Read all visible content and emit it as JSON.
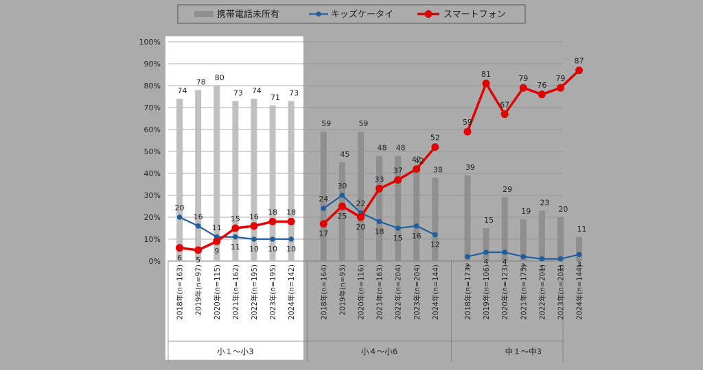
{
  "chart_data": {
    "type": "bar",
    "title": "",
    "xlabel": "",
    "ylabel": "",
    "ylim": [
      0,
      100
    ],
    "yticks": [
      "0%",
      "10%",
      "20%",
      "30%",
      "40%",
      "50%",
      "60%",
      "70%",
      "80%",
      "90%",
      "100%"
    ],
    "legend": {
      "position": "top",
      "entries": [
        "携帯電話未所有",
        "キッズケータイ",
        "スマートフォン"
      ]
    },
    "groups": [
      {
        "name": "小１～小3",
        "categories": [
          "2018年(n=163)",
          "2019年(n=97)",
          "2020年(n=115)",
          "2021年(n=162)",
          "2022年(n=195)",
          "2023年(n=195)",
          "2024年(n=142)"
        ],
        "series": [
          {
            "name": "携帯電話未所有",
            "kind": "bar",
            "values": [
              74,
              78,
              80,
              73,
              74,
              71,
              73
            ]
          },
          {
            "name": "キッズケータイ",
            "kind": "line",
            "values": [
              20,
              16,
              11,
              11,
              10,
              10,
              10
            ]
          },
          {
            "name": "スマートフォン",
            "kind": "line",
            "values": [
              6,
              5,
              9,
              15,
              16,
              18,
              18
            ]
          }
        ]
      },
      {
        "name": "小４～小6",
        "categories": [
          "2018年(n=164)",
          "2019年(n=93)",
          "2020年(n=116)",
          "2021年(n=163)",
          "2022年(n=204)",
          "2023年(n=204)",
          "2024年(n=144)"
        ],
        "series": [
          {
            "name": "携帯電話未所有",
            "kind": "bar",
            "values": [
              59,
              45,
              59,
              48,
              48,
              42,
              38
            ]
          },
          {
            "name": "キッズケータイ",
            "kind": "line",
            "values": [
              24,
              30,
              22,
              18,
              15,
              16,
              12
            ]
          },
          {
            "name": "スマートフォン",
            "kind": "line",
            "values": [
              17,
              25,
              20,
              33,
              37,
              42,
              52
            ]
          }
        ]
      },
      {
        "name": "中１～中3",
        "categories": [
          "2018年(n=173)",
          "2019年(n=106)",
          "2020年(n=123)",
          "2021年(n=175)",
          "2022年(n=201)",
          "2023年(n=201)",
          "2024年(n=144)"
        ],
        "series": [
          {
            "name": "携帯電話未所有",
            "kind": "bar",
            "values": [
              39,
              15,
              29,
              19,
              23,
              20,
              11
            ]
          },
          {
            "name": "キッズケータイ",
            "kind": "line",
            "values": [
              2,
              4,
              4,
              2,
              1,
              1,
              3
            ]
          },
          {
            "name": "スマートフォン",
            "kind": "line",
            "values": [
              59,
              81,
              67,
              79,
              76,
              79,
              87
            ]
          }
        ]
      }
    ],
    "highlighted_group": "小１～小3",
    "colors": {
      "background": "#ababab",
      "highlight_panel": "#ffffff",
      "bar": "#c0c0c0",
      "bar_other": "#8f8f8f",
      "kids_line": "#1f5f9e",
      "smartphone_line": "#e00000",
      "grid": "#8c8c8c",
      "text": "#222222"
    }
  }
}
